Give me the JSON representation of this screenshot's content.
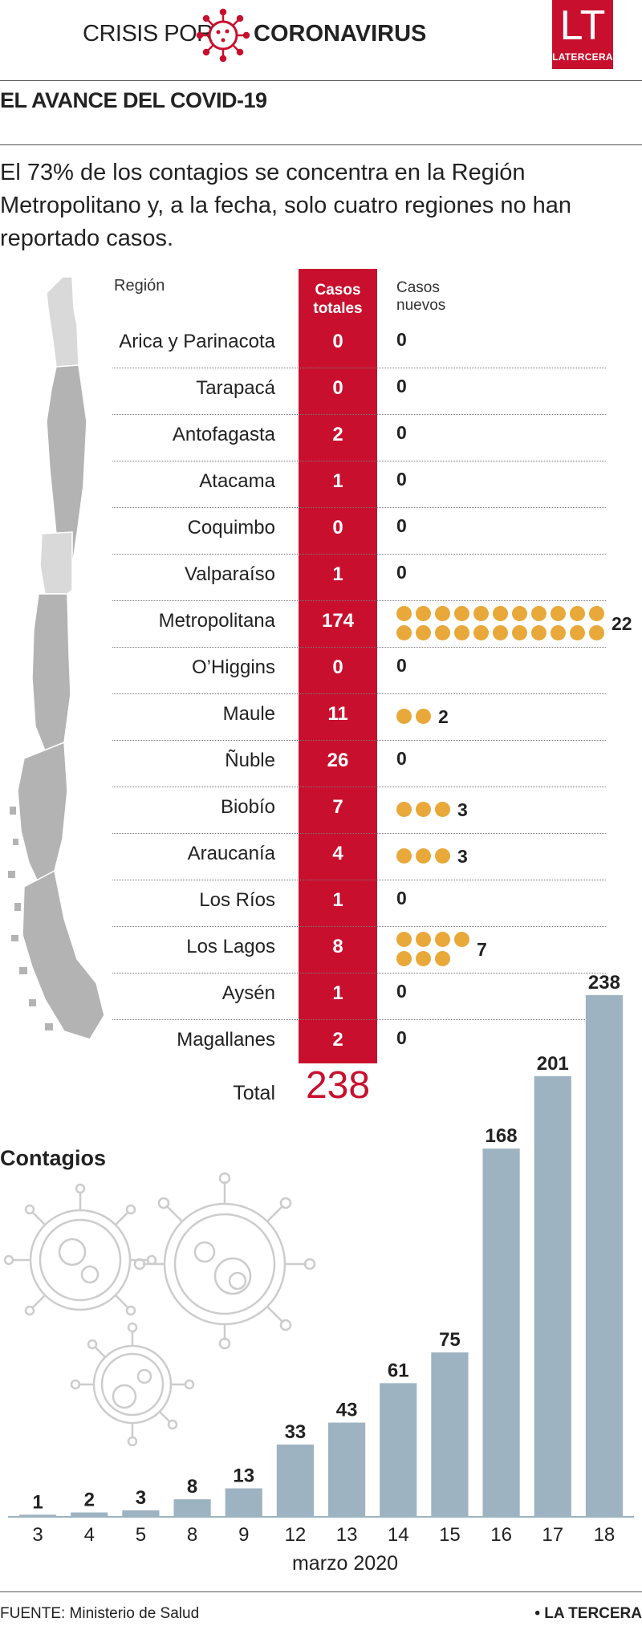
{
  "header": {
    "crisis_label": "CRISIS POR",
    "corona_label": "CORONAVIRUS",
    "logo_letters": "LT",
    "logo_word": "LATERCERA"
  },
  "section_title": "EL AVANCE DEL COVID-19",
  "intro": "El 73% de los contagios se concentra en la Región Metropolitano y, a la fecha, solo cuatro regiones no han reportado casos.",
  "table": {
    "headers": {
      "region": "Región",
      "total_line1": "Casos",
      "total_line2": "totales",
      "new_line1": "Casos",
      "new_line2": "nuevos"
    },
    "rows": [
      {
        "region": "Arica y Parinacota",
        "total": "0",
        "new": "0"
      },
      {
        "region": "Tarapacá",
        "total": "0",
        "new": "0"
      },
      {
        "region": "Antofagasta",
        "total": "2",
        "new": "0"
      },
      {
        "region": "Atacama",
        "total": "1",
        "new": "0"
      },
      {
        "region": "Coquimbo",
        "total": "0",
        "new": "0"
      },
      {
        "region": "Valparaíso",
        "total": "1",
        "new": "0"
      },
      {
        "region": "Metropolitana",
        "total": "174",
        "new": "22"
      },
      {
        "region": "O’Higgins",
        "total": "0",
        "new": "0"
      },
      {
        "region": "Maule",
        "total": "11",
        "new": "2"
      },
      {
        "region": "Ñuble",
        "total": "26",
        "new": "0"
      },
      {
        "region": "Biobío",
        "total": "7",
        "new": "3"
      },
      {
        "region": "Araucanía",
        "total": "4",
        "new": "3"
      },
      {
        "region": "Los Ríos",
        "total": "1",
        "new": "0"
      },
      {
        "region": "Los Lagos",
        "total": "8",
        "new": "7"
      },
      {
        "region": "Aysén",
        "total": "1",
        "new": "0"
      },
      {
        "region": "Magallanes",
        "total": "2",
        "new": "0"
      }
    ],
    "total_label": "Total",
    "total_value": "238"
  },
  "chart_data": {
    "type": "bar",
    "title": "Contagios",
    "xlabel": "marzo 2020",
    "ylabel": "",
    "categories": [
      "3",
      "4",
      "5",
      "8",
      "9",
      "12",
      "13",
      "14",
      "15",
      "16",
      "17",
      "18"
    ],
    "values": [
      1,
      2,
      3,
      8,
      13,
      33,
      43,
      61,
      75,
      168,
      201,
      238
    ],
    "ylim": [
      0,
      238
    ],
    "grid": false,
    "color": "#9db3c1"
  },
  "footer": {
    "source": "FUENTE: Ministerio de Salud",
    "brand": "• LA TERCERA"
  },
  "colors": {
    "accent": "#c8102e",
    "dot": "#e8a83a",
    "bar": "#9db3c1",
    "map": "#b3b3b3"
  }
}
